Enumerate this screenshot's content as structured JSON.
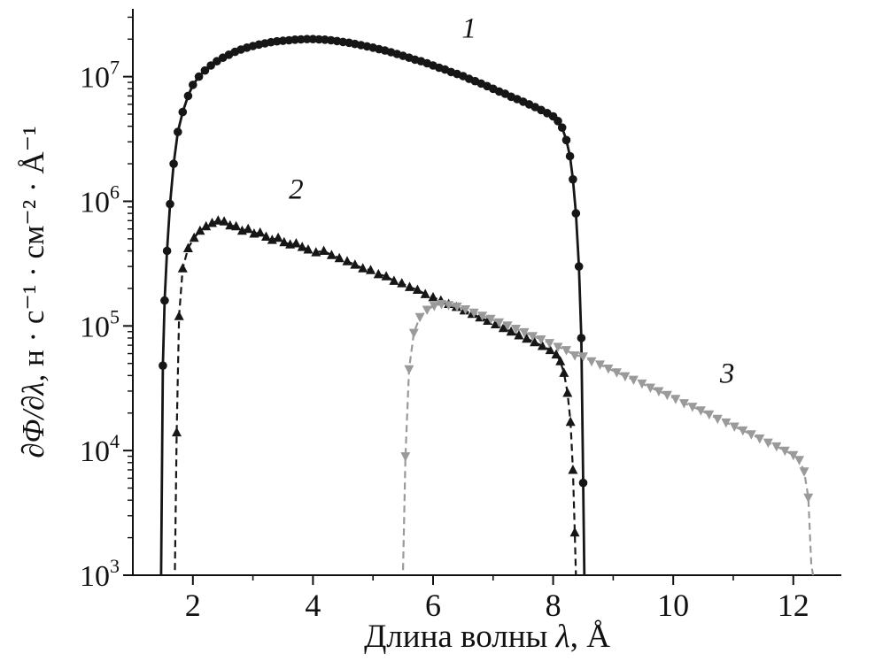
{
  "figure": {
    "background": "#ffffff"
  },
  "chart_data": {
    "type": "line",
    "title": "",
    "xlabel": "Длина волны λ, Å",
    "xlabel_parts": {
      "prefix": "Длина волны ",
      "symbol": "λ",
      "suffix": ", Å"
    },
    "ylabel": "∂Φ/∂λ, н · с⁻¹ · см⁻² · Å⁻¹",
    "ylabel_parts": {
      "math": "∂Φ/∂λ,",
      "units": " н · с⁻¹ · см⁻² · Å⁻¹"
    },
    "axis_color": "#111111",
    "grid": false,
    "legend": "none",
    "x_axis": {
      "scale": "linear",
      "min": 1.0,
      "max": 12.8,
      "major_ticks": [
        2,
        4,
        6,
        8,
        10,
        12
      ],
      "minor_ticks": [
        3,
        5,
        7,
        9,
        11
      ]
    },
    "y_axis": {
      "scale": "log",
      "min": 1000,
      "max": 35000000,
      "major_ticks": [
        1000,
        10000,
        100000,
        1000000,
        10000000
      ],
      "tick_labels": [
        "10³",
        "10⁴",
        "10⁵",
        "10⁶",
        "10⁷"
      ]
    },
    "annotations": [
      {
        "text": "1",
        "x": 6.6,
        "y": 20500000
      },
      {
        "text": "2",
        "x": 3.72,
        "y": 1050000
      },
      {
        "text": "3",
        "x": 10.9,
        "y": 35000
      }
    ],
    "series": [
      {
        "name": "1",
        "marker": "circle",
        "line": "solid",
        "color": "#161616",
        "points": [
          [
            1.47,
            1000
          ],
          [
            1.5,
            48000
          ],
          [
            1.53,
            160000
          ],
          [
            1.57,
            400000
          ],
          [
            1.62,
            950000
          ],
          [
            1.68,
            2000000
          ],
          [
            1.75,
            3600000
          ],
          [
            1.83,
            5200000
          ],
          [
            1.92,
            7000000
          ],
          [
            2.0,
            8600000
          ],
          [
            2.1,
            10000000
          ],
          [
            2.2,
            11200000
          ],
          [
            2.3,
            12300000
          ],
          [
            2.4,
            13300000
          ],
          [
            2.5,
            14200000
          ],
          [
            2.6,
            15000000
          ],
          [
            2.7,
            15800000
          ],
          [
            2.8,
            16500000
          ],
          [
            2.9,
            17100000
          ],
          [
            3.0,
            17600000
          ],
          [
            3.1,
            18100000
          ],
          [
            3.2,
            18500000
          ],
          [
            3.3,
            18900000
          ],
          [
            3.4,
            19200000
          ],
          [
            3.5,
            19400000
          ],
          [
            3.6,
            19600000
          ],
          [
            3.7,
            19800000
          ],
          [
            3.8,
            19900000
          ],
          [
            3.9,
            20000000
          ],
          [
            4.0,
            20000000
          ],
          [
            4.1,
            19900000
          ],
          [
            4.2,
            19800000
          ],
          [
            4.3,
            19600000
          ],
          [
            4.4,
            19300000
          ],
          [
            4.5,
            19000000
          ],
          [
            4.6,
            18700000
          ],
          [
            4.7,
            18300000
          ],
          [
            4.8,
            17900000
          ],
          [
            4.9,
            17500000
          ],
          [
            5.0,
            17100000
          ],
          [
            5.1,
            16600000
          ],
          [
            5.2,
            16200000
          ],
          [
            5.3,
            15700000
          ],
          [
            5.4,
            15200000
          ],
          [
            5.5,
            14700000
          ],
          [
            5.6,
            14200000
          ],
          [
            5.7,
            13700000
          ],
          [
            5.8,
            13300000
          ],
          [
            5.9,
            12800000
          ],
          [
            6.0,
            12300000
          ],
          [
            6.1,
            11800000
          ],
          [
            6.2,
            11400000
          ],
          [
            6.3,
            10900000
          ],
          [
            6.4,
            10500000
          ],
          [
            6.5,
            10100000
          ],
          [
            6.6,
            9600000
          ],
          [
            6.7,
            9200000
          ],
          [
            6.8,
            8800000
          ],
          [
            6.9,
            8400000
          ],
          [
            7.0,
            8000000
          ],
          [
            7.1,
            7600000
          ],
          [
            7.2,
            7300000
          ],
          [
            7.3,
            6900000
          ],
          [
            7.4,
            6600000
          ],
          [
            7.5,
            6300000
          ],
          [
            7.6,
            6000000
          ],
          [
            7.7,
            5700000
          ],
          [
            7.8,
            5400000
          ],
          [
            7.9,
            5100000
          ],
          [
            8.0,
            4800000
          ],
          [
            8.08,
            4400000
          ],
          [
            8.15,
            3900000
          ],
          [
            8.22,
            3100000
          ],
          [
            8.28,
            2300000
          ],
          [
            8.33,
            1500000
          ],
          [
            8.38,
            800000
          ],
          [
            8.43,
            300000
          ],
          [
            8.47,
            80000
          ],
          [
            8.5,
            5500
          ],
          [
            8.52,
            1000
          ]
        ]
      },
      {
        "name": "2",
        "marker": "triangle-up",
        "line": "dashed",
        "color": "#161616",
        "points": [
          [
            1.7,
            1100
          ],
          [
            1.73,
            14000
          ],
          [
            1.77,
            120000
          ],
          [
            1.83,
            290000
          ],
          [
            1.92,
            420000
          ],
          [
            2.02,
            510000
          ],
          [
            2.12,
            580000
          ],
          [
            2.22,
            630000
          ],
          [
            2.32,
            670000
          ],
          [
            2.42,
            700000
          ],
          [
            2.52,
            690000
          ],
          [
            2.62,
            640000
          ],
          [
            2.72,
            630000
          ],
          [
            2.82,
            580000
          ],
          [
            2.92,
            600000
          ],
          [
            3.02,
            550000
          ],
          [
            3.12,
            560000
          ],
          [
            3.22,
            520000
          ],
          [
            3.32,
            490000
          ],
          [
            3.42,
            510000
          ],
          [
            3.52,
            470000
          ],
          [
            3.62,
            450000
          ],
          [
            3.72,
            460000
          ],
          [
            3.82,
            430000
          ],
          [
            3.92,
            410000
          ],
          [
            4.05,
            390000
          ],
          [
            4.18,
            400000
          ],
          [
            4.31,
            370000
          ],
          [
            4.44,
            350000
          ],
          [
            4.57,
            330000
          ],
          [
            4.7,
            310000
          ],
          [
            4.83,
            290000
          ],
          [
            4.96,
            280000
          ],
          [
            5.09,
            260000
          ],
          [
            5.22,
            250000
          ],
          [
            5.35,
            230000
          ],
          [
            5.48,
            220000
          ],
          [
            5.61,
            205000
          ],
          [
            5.74,
            195000
          ],
          [
            5.87,
            180000
          ],
          [
            6.0,
            170000
          ],
          [
            6.13,
            160000
          ],
          [
            6.26,
            150000
          ],
          [
            6.39,
            142000
          ],
          [
            6.52,
            133000
          ],
          [
            6.65,
            125000
          ],
          [
            6.78,
            117000
          ],
          [
            6.91,
            110000
          ],
          [
            7.04,
            103000
          ],
          [
            7.17,
            96000
          ],
          [
            7.3,
            90000
          ],
          [
            7.43,
            84000
          ],
          [
            7.56,
            79000
          ],
          [
            7.69,
            74000
          ],
          [
            7.82,
            69000
          ],
          [
            7.95,
            64000
          ],
          [
            8.05,
            59000
          ],
          [
            8.12,
            52000
          ],
          [
            8.18,
            42000
          ],
          [
            8.24,
            29000
          ],
          [
            8.29,
            17000
          ],
          [
            8.33,
            7000
          ],
          [
            8.36,
            2200
          ],
          [
            8.38,
            1000
          ]
        ]
      },
      {
        "name": "3",
        "marker": "triangle-down",
        "line": "dashed",
        "color": "#9a9a9a",
        "points": [
          [
            5.5,
            1100
          ],
          [
            5.54,
            9000
          ],
          [
            5.6,
            45000
          ],
          [
            5.68,
            88000
          ],
          [
            5.78,
            118000
          ],
          [
            5.9,
            135000
          ],
          [
            6.02,
            145000
          ],
          [
            6.14,
            150000
          ],
          [
            6.26,
            147000
          ],
          [
            6.4,
            143000
          ],
          [
            6.54,
            136000
          ],
          [
            6.68,
            128000
          ],
          [
            6.82,
            121000
          ],
          [
            6.96,
            114000
          ],
          [
            7.1,
            107000
          ],
          [
            7.24,
            101000
          ],
          [
            7.38,
            95000
          ],
          [
            7.52,
            89000
          ],
          [
            7.66,
            83000
          ],
          [
            7.8,
            78000
          ],
          [
            7.94,
            73000
          ],
          [
            8.08,
            68000
          ],
          [
            8.22,
            64000
          ],
          [
            8.36,
            58000
          ],
          [
            8.5,
            57000
          ],
          [
            8.64,
            52000
          ],
          [
            8.78,
            49000
          ],
          [
            8.92,
            45500
          ],
          [
            9.06,
            42500
          ],
          [
            9.2,
            39500
          ],
          [
            9.34,
            37000
          ],
          [
            9.48,
            34500
          ],
          [
            9.62,
            32000
          ],
          [
            9.76,
            30000
          ],
          [
            9.9,
            28000
          ],
          [
            10.04,
            26000
          ],
          [
            10.18,
            24000
          ],
          [
            10.32,
            22500
          ],
          [
            10.46,
            21000
          ],
          [
            10.6,
            19500
          ],
          [
            10.74,
            18000
          ],
          [
            10.88,
            16800
          ],
          [
            11.02,
            15600
          ],
          [
            11.16,
            14500
          ],
          [
            11.3,
            13500
          ],
          [
            11.44,
            12500
          ],
          [
            11.58,
            11600
          ],
          [
            11.72,
            10800
          ],
          [
            11.86,
            10000
          ],
          [
            12.0,
            9200
          ],
          [
            12.1,
            8400
          ],
          [
            12.18,
            6800
          ],
          [
            12.25,
            4200
          ],
          [
            12.3,
            1200
          ],
          [
            12.33,
            1000
          ]
        ]
      }
    ]
  }
}
